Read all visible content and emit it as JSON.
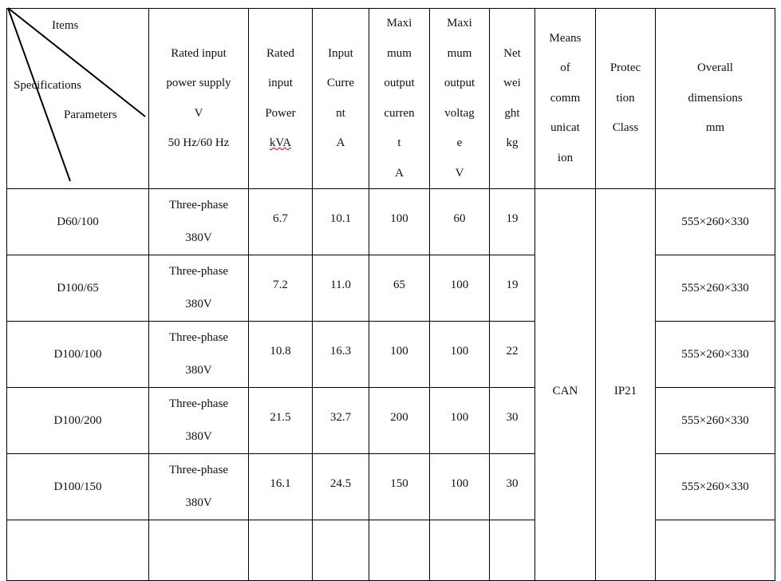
{
  "corner": {
    "items": "Items",
    "specifications": "Specifications",
    "parameters": "Parameters"
  },
  "headers": [
    [
      "Rated input",
      "power supply",
      "V",
      "50 Hz/60 Hz"
    ],
    [
      "Rated",
      "input",
      "Power",
      "kVA"
    ],
    [
      "Input",
      "Curre",
      "nt",
      "A"
    ],
    [
      "Maxi",
      "mum",
      "output",
      "curren",
      "t",
      "A"
    ],
    [
      "Maxi",
      "mum",
      "output",
      "voltag",
      "e",
      "V"
    ],
    [
      "Net",
      "wei",
      "ght",
      "kg"
    ],
    [
      "Means",
      "of",
      "comm",
      "unicat",
      "ion"
    ],
    [
      "Protec",
      "tion",
      "Class"
    ],
    [
      "Overall",
      "dimensions",
      "mm"
    ]
  ],
  "rows": [
    {
      "model": "D60/100",
      "supply": [
        "Three-phase",
        "380V"
      ],
      "power": "6.7",
      "current": "10.1",
      "max_current": "100",
      "max_voltage": "60",
      "weight": "19",
      "dimensions": "555×260×330"
    },
    {
      "model": "D100/65",
      "supply": [
        "Three-phase",
        "380V"
      ],
      "power": "7.2",
      "current": "11.0",
      "max_current": "65",
      "max_voltage": "100",
      "weight": "19",
      "dimensions": "555×260×330"
    },
    {
      "model": "D100/100",
      "supply": [
        "Three-phase",
        "380V"
      ],
      "power": "10.8",
      "current": "16.3",
      "max_current": "100",
      "max_voltage": "100",
      "weight": "22",
      "dimensions": "555×260×330"
    },
    {
      "model": "D100/200",
      "supply": [
        "Three-phase",
        "380V"
      ],
      "power": "21.5",
      "current": "32.7",
      "max_current": "200",
      "max_voltage": "100",
      "weight": "30",
      "dimensions": "555×260×330"
    },
    {
      "model": "D100/150",
      "supply": [
        "Three-phase",
        "380V"
      ],
      "power": "16.1",
      "current": "24.5",
      "max_current": "150",
      "max_voltage": "100",
      "weight": "30",
      "dimensions": "555×260×330"
    }
  ],
  "shared": {
    "communication": "CAN",
    "protection": "IP21"
  }
}
